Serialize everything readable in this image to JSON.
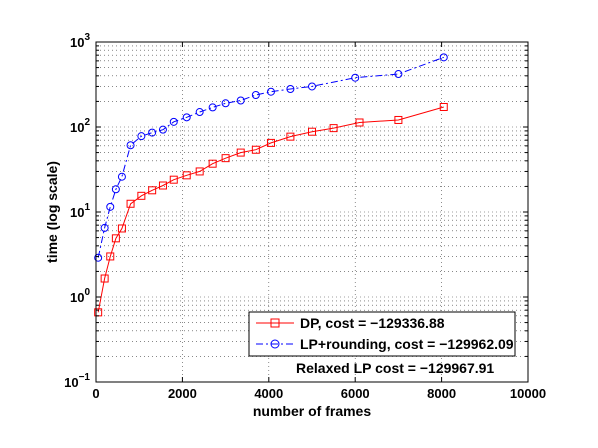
{
  "chart_data": {
    "type": "line",
    "title": "",
    "xlabel": "number of frames",
    "ylabel": "time (log scale)",
    "xlim": [
      0,
      10000
    ],
    "ylim": [
      0.1,
      1000
    ],
    "y_scale": "log",
    "grid": true,
    "x_ticks": [
      {
        "value": 0,
        "label": "0"
      },
      {
        "value": 2000,
        "label": "2000"
      },
      {
        "value": 4000,
        "label": "4000"
      },
      {
        "value": 6000,
        "label": "6000"
      },
      {
        "value": 8000,
        "label": "8000"
      },
      {
        "value": 10000,
        "label": "10000"
      }
    ],
    "y_ticks": [
      {
        "value": 0.1,
        "base": "10",
        "exp": "−1"
      },
      {
        "value": 1,
        "base": "10",
        "exp": "0"
      },
      {
        "value": 10,
        "base": "10",
        "exp": "1"
      },
      {
        "value": 100,
        "base": "10",
        "exp": "2"
      },
      {
        "value": 1000,
        "base": "10",
        "exp": "3"
      }
    ],
    "legend_position": "bottom-right",
    "series": [
      {
        "name": "DP, cost = −129336.88",
        "color": "#ff0000",
        "marker": "square",
        "line_style": "solid",
        "x": [
          50,
          200,
          330,
          460,
          600,
          800,
          1050,
          1300,
          1550,
          1800,
          2100,
          2400,
          2700,
          3000,
          3350,
          3700,
          4050,
          4500,
          5000,
          5500,
          6100,
          7000,
          8050
        ],
        "y": [
          0.66,
          1.65,
          3.0,
          4.9,
          6.4,
          12.5,
          15.5,
          18,
          20.5,
          24,
          27,
          30,
          37,
          43,
          50,
          54,
          65,
          77,
          88,
          97,
          113,
          121,
          172
        ]
      },
      {
        "name": "LP+rounding, cost = −129962.09",
        "color": "#0000ff",
        "marker": "circle",
        "line_style": "dashdot",
        "x": [
          50,
          200,
          330,
          460,
          600,
          800,
          1050,
          1300,
          1550,
          1800,
          2100,
          2400,
          2700,
          3000,
          3350,
          3700,
          4050,
          4500,
          5000,
          6000,
          7000,
          8050
        ],
        "y": [
          2.9,
          6.5,
          11.5,
          18.5,
          26,
          61,
          78,
          86,
          93,
          115,
          130,
          150,
          170,
          190,
          205,
          238,
          260,
          280,
          300,
          380,
          420,
          660
        ]
      }
    ],
    "annotation": "Relaxed LP cost = −129967.91"
  }
}
